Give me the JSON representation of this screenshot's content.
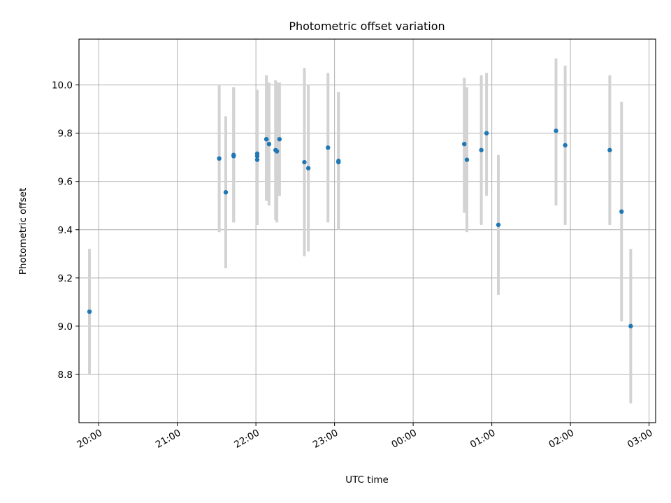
{
  "chart_data": {
    "type": "scatter",
    "title": "Photometric offset variation",
    "xlabel": "UTC time",
    "ylabel": "Photometric offset",
    "x_axis_kind": "time",
    "xlim": [
      "19:45",
      "03:05"
    ],
    "ylim": [
      8.6,
      10.19
    ],
    "x_ticks": [
      "20:00",
      "21:00",
      "22:00",
      "23:00",
      "00:00",
      "01:00",
      "02:00",
      "03:00"
    ],
    "y_ticks": [
      "8.8",
      "9.0",
      "9.2",
      "9.4",
      "9.6",
      "9.8",
      "10.0"
    ],
    "grid": true,
    "colors": {
      "point": "#1f77b4",
      "errorbar": "#d3d3d3",
      "grid": "#b0b0b0"
    },
    "points": [
      {
        "x": "19:53",
        "y": 9.06,
        "lo": 8.8,
        "hi": 9.32
      },
      {
        "x": "21:32",
        "y": 9.695,
        "lo": 9.39,
        "hi": 10.0
      },
      {
        "x": "21:37",
        "y": 9.555,
        "lo": 9.24,
        "hi": 9.87
      },
      {
        "x": "21:43",
        "y": 9.71,
        "lo": 9.43,
        "hi": 9.99
      },
      {
        "x": "21:43",
        "y": 9.705,
        "lo": 9.43,
        "hi": 9.99
      },
      {
        "x": "22:01",
        "y": 9.715,
        "lo": 9.42,
        "hi": 9.98
      },
      {
        "x": "22:01",
        "y": 9.705,
        "lo": 9.42,
        "hi": 9.97
      },
      {
        "x": "22:01",
        "y": 9.69,
        "lo": 9.42,
        "hi": 9.96
      },
      {
        "x": "22:08",
        "y": 9.775,
        "lo": 9.52,
        "hi": 10.04
      },
      {
        "x": "22:08",
        "y": 9.775,
        "lo": 9.52,
        "hi": 10.04
      },
      {
        "x": "22:10",
        "y": 9.755,
        "lo": 9.5,
        "hi": 10.01
      },
      {
        "x": "22:15",
        "y": 9.73,
        "lo": 9.44,
        "hi": 10.02
      },
      {
        "x": "22:16",
        "y": 9.725,
        "lo": 9.43,
        "hi": 10.01
      },
      {
        "x": "22:18",
        "y": 9.775,
        "lo": 9.54,
        "hi": 10.01
      },
      {
        "x": "22:37",
        "y": 9.68,
        "lo": 9.29,
        "hi": 10.07
      },
      {
        "x": "22:40",
        "y": 9.655,
        "lo": 9.31,
        "hi": 10.0
      },
      {
        "x": "22:55",
        "y": 9.74,
        "lo": 9.43,
        "hi": 10.05
      },
      {
        "x": "23:03",
        "y": 9.685,
        "lo": 9.4,
        "hi": 9.97
      },
      {
        "x": "23:03",
        "y": 9.68,
        "lo": 9.4,
        "hi": 9.97
      },
      {
        "x": "00:39",
        "y": 9.755,
        "lo": 9.47,
        "hi": 10.03
      },
      {
        "x": "00:41",
        "y": 9.69,
        "lo": 9.39,
        "hi": 9.99
      },
      {
        "x": "00:52",
        "y": 9.73,
        "lo": 9.42,
        "hi": 10.04
      },
      {
        "x": "00:56",
        "y": 9.8,
        "lo": 9.54,
        "hi": 10.05
      },
      {
        "x": "01:05",
        "y": 9.42,
        "lo": 9.13,
        "hi": 9.71
      },
      {
        "x": "01:49",
        "y": 9.81,
        "lo": 9.5,
        "hi": 10.11
      },
      {
        "x": "01:56",
        "y": 9.75,
        "lo": 9.42,
        "hi": 10.08
      },
      {
        "x": "02:30",
        "y": 9.73,
        "lo": 9.42,
        "hi": 10.04
      },
      {
        "x": "02:39",
        "y": 9.475,
        "lo": 9.02,
        "hi": 9.93
      },
      {
        "x": "02:46",
        "y": 9.0,
        "lo": 8.68,
        "hi": 9.32
      }
    ]
  }
}
